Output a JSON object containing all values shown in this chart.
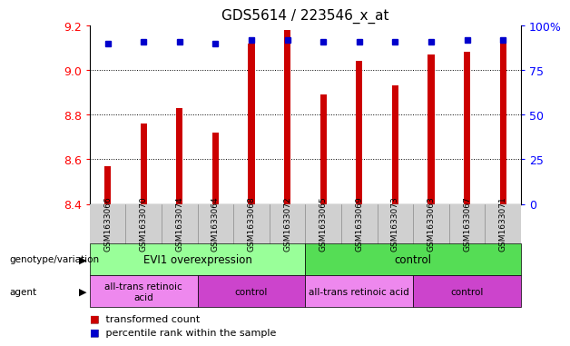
{
  "title": "GDS5614 / 223546_x_at",
  "samples": [
    "GSM1633066",
    "GSM1633070",
    "GSM1633074",
    "GSM1633064",
    "GSM1633068",
    "GSM1633072",
    "GSM1633065",
    "GSM1633069",
    "GSM1633073",
    "GSM1633063",
    "GSM1633067",
    "GSM1633071"
  ],
  "bar_values": [
    8.57,
    8.76,
    8.83,
    8.72,
    9.12,
    9.18,
    8.89,
    9.04,
    8.93,
    9.07,
    9.08,
    9.14
  ],
  "percentile_values": [
    90,
    91,
    91,
    90,
    92,
    92,
    91,
    91,
    91,
    91,
    92,
    92
  ],
  "ymin": 8.4,
  "ymax": 9.2,
  "yticks": [
    8.4,
    8.6,
    8.8,
    9.0,
    9.2
  ],
  "right_yticks": [
    0,
    25,
    50,
    75,
    100
  ],
  "bar_color": "#cc0000",
  "dot_color": "#0000cc",
  "bg_color": "#d9d9d9",
  "genotype_groups": [
    {
      "label": "EVI1 overexpression",
      "start": 0,
      "end": 6,
      "color": "#99ff99"
    },
    {
      "label": "control",
      "start": 6,
      "end": 12,
      "color": "#55dd55"
    }
  ],
  "agent_groups": [
    {
      "label": "all-trans retinoic\nacid",
      "start": 0,
      "end": 3,
      "color": "#ee88ee"
    },
    {
      "label": "control",
      "start": 3,
      "end": 6,
      "color": "#cc44cc"
    },
    {
      "label": "all-trans retinoic acid",
      "start": 6,
      "end": 9,
      "color": "#ee88ee"
    },
    {
      "label": "control",
      "start": 9,
      "end": 12,
      "color": "#cc44cc"
    }
  ],
  "legend_items": [
    {
      "color": "#cc0000",
      "label": "transformed count"
    },
    {
      "color": "#0000cc",
      "label": "percentile rank within the sample"
    }
  ]
}
